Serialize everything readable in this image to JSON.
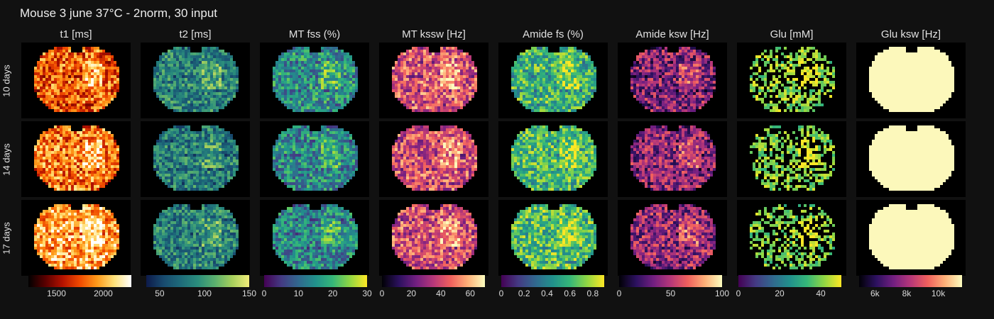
{
  "title": "Mouse 3 june 37°C - 2norm, 30 input",
  "chart_data": {
    "type": "heatmap",
    "title": "Mouse 3 june 37°C - 2norm, 30 input",
    "rows": [
      "10 days",
      "14 days",
      "17 days"
    ],
    "columns": [
      {
        "label": "t1 [ms]",
        "colormap": "hot",
        "range": [
          1200,
          2300
        ],
        "ticks": [
          1500,
          2000
        ],
        "tick_labels": [
          "1500",
          "2000"
        ]
      },
      {
        "label": "t2 [ms]",
        "colormap": "haline",
        "range": [
          35,
          150
        ],
        "ticks": [
          50,
          100,
          150
        ],
        "tick_labels": [
          "50",
          "100",
          "150"
        ]
      },
      {
        "label": "MT fss (%)",
        "colormap": "viridis",
        "range": [
          0,
          30
        ],
        "ticks": [
          0,
          10,
          20,
          30
        ],
        "tick_labels": [
          "0",
          "10",
          "20",
          "30"
        ]
      },
      {
        "label": "MT kssw [Hz]",
        "colormap": "magma",
        "range": [
          0,
          70
        ],
        "ticks": [
          0,
          20,
          40,
          60
        ],
        "tick_labels": [
          "0",
          "20",
          "40",
          "60"
        ]
      },
      {
        "label": "Amide fs (%)",
        "colormap": "viridis",
        "range": [
          0,
          0.9
        ],
        "ticks": [
          0,
          0.2,
          0.4,
          0.6,
          0.8
        ],
        "tick_labels": [
          "0",
          "0.2",
          "0.4",
          "0.6",
          "0.8"
        ]
      },
      {
        "label": "Amide ksw [Hz]",
        "colormap": "magma",
        "range": [
          0,
          100
        ],
        "ticks": [
          0,
          50,
          100
        ],
        "tick_labels": [
          "0",
          "50",
          "100"
        ]
      },
      {
        "label": "Glu [mM]",
        "colormap": "viridis",
        "range": [
          0,
          50
        ],
        "ticks": [
          0,
          20,
          40
        ],
        "tick_labels": [
          "0",
          "20",
          "40"
        ]
      },
      {
        "label": "Glu ksw [Hz]",
        "colormap": "magma",
        "range": [
          5000,
          11500
        ],
        "ticks": [
          6000,
          8000,
          10000
        ],
        "tick_labels": [
          "6k",
          "8k",
          "10k"
        ]
      }
    ],
    "typical_level": [
      [
        0.55,
        0.45,
        0.5,
        0.62,
        0.66,
        0.38,
        0.72,
        0.99
      ],
      [
        0.6,
        0.42,
        0.48,
        0.6,
        0.68,
        0.4,
        0.7,
        0.99
      ],
      [
        0.72,
        0.44,
        0.47,
        0.6,
        0.7,
        0.42,
        0.7,
        0.99
      ]
    ],
    "background": "#000000",
    "colormaps": {
      "hot": [
        "#000000",
        "#5a0000",
        "#b41200",
        "#f04a00",
        "#ff9a1a",
        "#ffe27a",
        "#ffffff"
      ],
      "haline": [
        "#0d1a4a",
        "#184a6e",
        "#1e6b7a",
        "#2a8d7c",
        "#5ab06e",
        "#a6cf5c",
        "#f0ec7a"
      ],
      "viridis": [
        "#440154",
        "#443a83",
        "#31688e",
        "#21918c",
        "#35b779",
        "#90d743",
        "#fde725"
      ],
      "magma": [
        "#000004",
        "#2c115f",
        "#721f81",
        "#b73779",
        "#f1605d",
        "#feb078",
        "#fcfdbf"
      ]
    }
  }
}
